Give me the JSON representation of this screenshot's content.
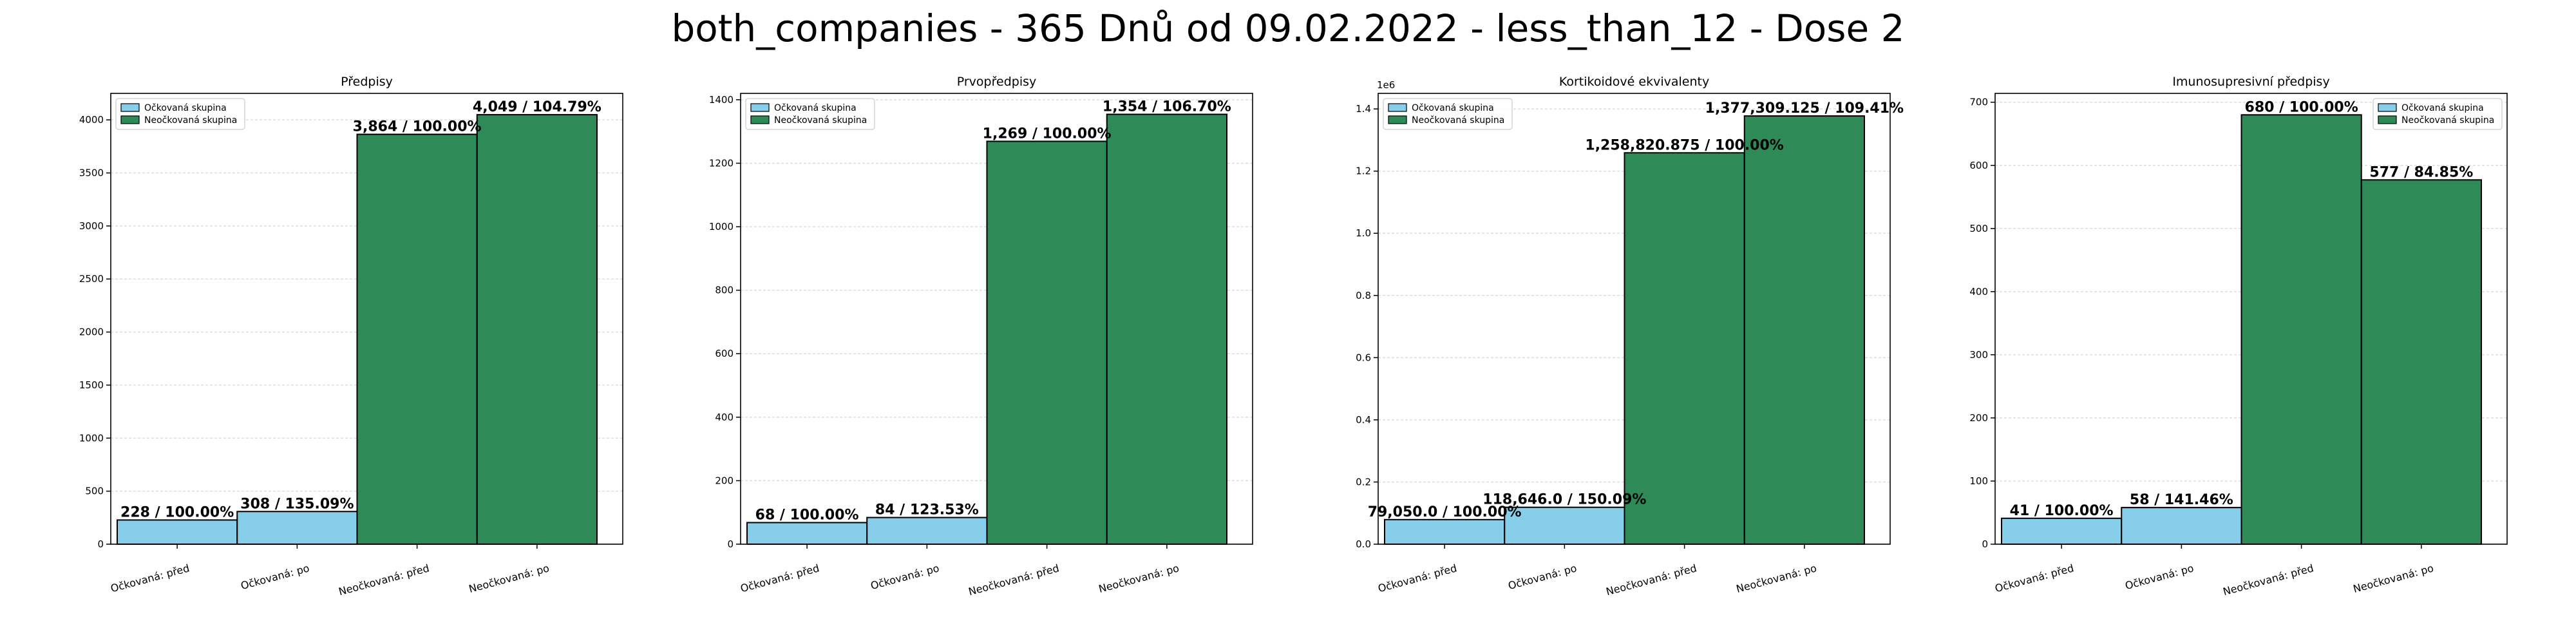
{
  "figure": {
    "suptitle": "both_companies - 365 Dnů od 09.02.2022 - less_than_12 - Dose 2"
  },
  "colors": {
    "vaccinated": "#87ceeb",
    "unvaccinated": "#2e8b57",
    "edge": "#000000",
    "grid": "#dddddd"
  },
  "chart_data": [
    {
      "type": "bar",
      "title": "Předpisy",
      "categories": [
        "Očkovaná: před",
        "Očkovaná: po",
        "Neočkovaná: před",
        "Neočkovaná: po"
      ],
      "values": [
        228,
        308,
        3864,
        4049
      ],
      "groups": [
        "vaccinated",
        "vaccinated",
        "unvaccinated",
        "unvaccinated"
      ],
      "data_labels": [
        "228 / 100.00%",
        "308 / 135.09%",
        "3,864 / 100.00%",
        "4,049 / 104.79%"
      ],
      "ylim": [
        0,
        4250
      ],
      "yticks": [
        0,
        500,
        1000,
        1500,
        2000,
        2500,
        3000,
        3500,
        4000
      ],
      "ytick_labels": [
        "0",
        "500",
        "1000",
        "1500",
        "2000",
        "2500",
        "3000",
        "3500",
        "4000"
      ],
      "offset_label": "",
      "legend": {
        "position": "top-left",
        "entries": [
          "Očkovaná skupina",
          "Neočkovaná skupina"
        ]
      },
      "grid": true
    },
    {
      "type": "bar",
      "title": "Prvopředpisy",
      "categories": [
        "Očkovaná: před",
        "Očkovaná: po",
        "Neočkovaná: před",
        "Neočkovaná: po"
      ],
      "values": [
        68,
        84,
        1269,
        1354
      ],
      "groups": [
        "vaccinated",
        "vaccinated",
        "unvaccinated",
        "unvaccinated"
      ],
      "data_labels": [
        "68 / 100.00%",
        "84 / 123.53%",
        "1,269 / 100.00%",
        "1,354 / 106.70%"
      ],
      "ylim": [
        0,
        1420
      ],
      "yticks": [
        0,
        200,
        400,
        600,
        800,
        1000,
        1200,
        1400
      ],
      "ytick_labels": [
        "0",
        "200",
        "400",
        "600",
        "800",
        "1000",
        "1200",
        "1400"
      ],
      "offset_label": "",
      "legend": {
        "position": "top-left",
        "entries": [
          "Očkovaná skupina",
          "Neočkovaná skupina"
        ]
      },
      "grid": true
    },
    {
      "type": "bar",
      "title": "Kortikoidové ekvivalenty",
      "categories": [
        "Očkovaná: před",
        "Očkovaná: po",
        "Neočkovaná: před",
        "Neočkovaná: po"
      ],
      "values": [
        79050.0,
        118646.0,
        1258820.875,
        1377309.125
      ],
      "groups": [
        "vaccinated",
        "vaccinated",
        "unvaccinated",
        "unvaccinated"
      ],
      "data_labels": [
        "79,050.0 / 100.00%",
        "118,646.0 / 150.09%",
        "1,258,820.875 / 100.00%",
        "1,377,309.125 / 109.41%"
      ],
      "ylim": [
        0,
        1450000
      ],
      "yticks": [
        0,
        200000,
        400000,
        600000,
        800000,
        1000000,
        1200000,
        1400000
      ],
      "ytick_labels": [
        "0.0",
        "0.2",
        "0.4",
        "0.6",
        "0.8",
        "1.0",
        "1.2",
        "1.4"
      ],
      "offset_label": "1e6",
      "legend": {
        "position": "top-left",
        "entries": [
          "Očkovaná skupina",
          "Neočkovaná skupina"
        ]
      },
      "grid": true
    },
    {
      "type": "bar",
      "title": "Imunosupresivní předpisy",
      "categories": [
        "Očkovaná: před",
        "Očkovaná: po",
        "Neočkovaná: před",
        "Neočkovaná: po"
      ],
      "values": [
        41,
        58,
        680,
        577
      ],
      "groups": [
        "vaccinated",
        "vaccinated",
        "unvaccinated",
        "unvaccinated"
      ],
      "data_labels": [
        "41 / 100.00%",
        "58 / 141.46%",
        "680 / 100.00%",
        "577 / 84.85%"
      ],
      "ylim": [
        0,
        714
      ],
      "yticks": [
        0,
        100,
        200,
        300,
        400,
        500,
        600,
        700
      ],
      "ytick_labels": [
        "0",
        "100",
        "200",
        "300",
        "400",
        "500",
        "600",
        "700"
      ],
      "offset_label": "",
      "legend": {
        "position": "top-right",
        "entries": [
          "Očkovaná skupina",
          "Neočkovaná skupina"
        ]
      },
      "grid": true
    }
  ]
}
